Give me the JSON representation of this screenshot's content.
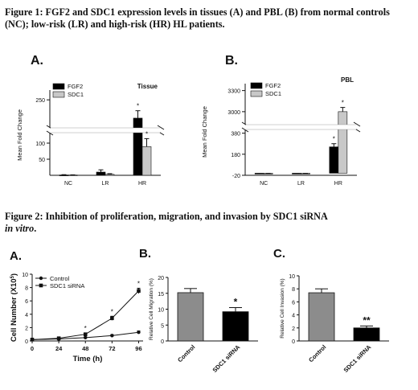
{
  "figure1": {
    "caption": "Figure 1:  FGF2 and SDC1 expression levels in tissues (A) and PBL (B) from normal controls (NC); low-risk (LR) and high-risk (HR) HL patients."
  },
  "figure2": {
    "caption_prefix": "Figure 2: Inhibition of proliferation, migration, and invasion by SDC1 siRNA",
    "caption_italic": "in vitro",
    "caption_suffix": "."
  },
  "chart_data": [
    {
      "id": "fig1A",
      "panel_label": "A.",
      "type": "bar",
      "title": "Tissue",
      "ylabel": "Mean Fold Change",
      "xlabel": "",
      "categories": [
        "NC",
        "LR",
        "HR"
      ],
      "series": [
        {
          "name": "FGF2",
          "color": "#000000",
          "values": [
            1,
            10,
            213
          ],
          "errors": [
            1,
            7,
            15
          ]
        },
        {
          "name": "SDC1",
          "color": "#c8c8c8",
          "values": [
            1,
            3,
            89
          ],
          "errors": [
            0.5,
            2,
            25
          ]
        }
      ],
      "yticks": [
        50,
        100,
        250
      ],
      "ylim": [
        0,
        260
      ],
      "axis_break": [
        125,
        195
      ],
      "significance": [
        {
          "series": "FGF2",
          "category": "HR",
          "label": "*"
        },
        {
          "series": "SDC1",
          "category": "HR",
          "label": "*"
        }
      ],
      "legend": "top-left",
      "grid": false
    },
    {
      "id": "fig1B",
      "panel_label": "B.",
      "type": "bar",
      "title": "PBL",
      "ylabel": "Mean Fold Change",
      "xlabel": "",
      "categories": [
        "NC",
        "LR",
        "HR"
      ],
      "series": [
        {
          "name": "FGF2",
          "color": "#000000",
          "values": [
            -5,
            -5,
            250
          ],
          "errors": [
            3,
            3,
            30
          ]
        },
        {
          "name": "SDC1",
          "color": "#c8c8c8",
          "values": [
            -5,
            -5,
            3000
          ],
          "errors": [
            3,
            3,
            60
          ]
        }
      ],
      "yticks": [
        -20,
        180,
        380,
        3000,
        3300
      ],
      "axis_break": [
        500,
        2850
      ],
      "significance": [
        {
          "series": "FGF2",
          "category": "HR",
          "label": "*"
        },
        {
          "series": "SDC1",
          "category": "HR",
          "label": "*"
        }
      ],
      "legend": "top-left",
      "grid": false
    },
    {
      "id": "fig2A",
      "panel_label": "A.",
      "type": "line",
      "title": "",
      "xlabel": "Time (h)",
      "ylabel": "Cell Number (X10",
      "ylabel_sup": "5",
      "ylabel_close": ")",
      "x": [
        0,
        24,
        48,
        72,
        96
      ],
      "series": [
        {
          "name": "Control",
          "marker": "circle",
          "values": [
            0.2,
            0.3,
            0.5,
            0.8,
            1.3
          ],
          "errors": [
            0.1,
            0.1,
            0.1,
            0.15,
            0.2
          ]
        },
        {
          "name": "SDC1 siRNA",
          "marker": "square",
          "values": [
            0.2,
            0.4,
            1.0,
            3.4,
            7.5
          ],
          "errors": [
            0.1,
            0.1,
            0.2,
            0.3,
            0.4
          ]
        }
      ],
      "xticks": [
        "0",
        "24",
        "48",
        "72",
        "96"
      ],
      "yticks": [
        "0",
        "2",
        "4",
        "6",
        "8",
        "10"
      ],
      "xlim": [
        0,
        100
      ],
      "ylim": [
        0,
        10
      ],
      "significance": [
        {
          "x": 48,
          "label": "*"
        },
        {
          "x": 72,
          "label": "*"
        },
        {
          "x": 96,
          "label": "*"
        }
      ],
      "legend": "top-left",
      "grid": false
    },
    {
      "id": "fig2B",
      "panel_label": "B.",
      "type": "bar",
      "ylabel": "Relative Cell Migration (%)",
      "xlabel": "",
      "categories": [
        "Control",
        "SDC1 siRNA"
      ],
      "values": [
        15.2,
        9.2
      ],
      "errors": [
        1.3,
        1.3
      ],
      "colors": [
        "#8c8c8c",
        "#000000"
      ],
      "yticks": [
        "0",
        "5",
        "10",
        "15",
        "20"
      ],
      "ylim": [
        0,
        20
      ],
      "significance": [
        {
          "category": "SDC1 siRNA",
          "label": "*"
        }
      ],
      "grid": false
    },
    {
      "id": "fig2C",
      "panel_label": "C.",
      "type": "bar",
      "ylabel": "Relative Cell Invasion (%)",
      "xlabel": "",
      "categories": [
        "Control",
        "SDC1 siRNA"
      ],
      "values": [
        7.4,
        2.0
      ],
      "errors": [
        0.6,
        0.3
      ],
      "colors": [
        "#8c8c8c",
        "#000000"
      ],
      "yticks": [
        "0",
        "2",
        "4",
        "6",
        "8",
        "10"
      ],
      "ylim": [
        0,
        10
      ],
      "significance": [
        {
          "category": "SDC1 siRNA",
          "label": "**"
        }
      ],
      "grid": false
    }
  ]
}
